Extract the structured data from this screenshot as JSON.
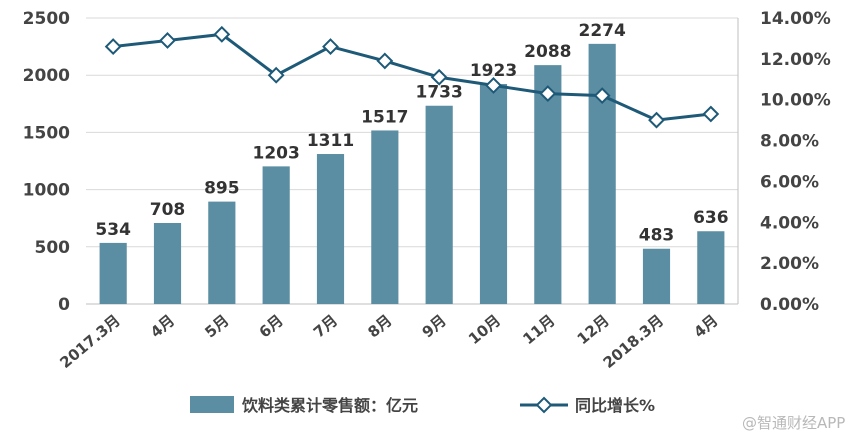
{
  "chart_data": {
    "type": "bar+line",
    "categories": [
      "2017.3月",
      "4月",
      "5月",
      "6月",
      "7月",
      "8月",
      "9月",
      "10月",
      "11月",
      "12月",
      "2018.3月",
      "4月"
    ],
    "series": [
      {
        "name": "饮料类累计零售额：亿元",
        "type": "bar",
        "axis": "left",
        "color": "#5b8da3",
        "values": [
          534,
          708,
          895,
          1203,
          1311,
          1517,
          1733,
          1923,
          2088,
          2274,
          483,
          636
        ]
      },
      {
        "name": "同比增长%",
        "type": "line",
        "axis": "right",
        "color": "#1e5a78",
        "values": [
          12.6,
          12.9,
          13.2,
          11.2,
          12.6,
          11.9,
          11.1,
          10.7,
          10.3,
          10.2,
          9.0,
          9.3
        ]
      }
    ],
    "y_left": {
      "min": 0,
      "max": 2500,
      "ticks": [
        0,
        500,
        1000,
        1500,
        2000,
        2500
      ]
    },
    "y_right": {
      "min": 0,
      "max": 14,
      "ticks": [
        "0.00%",
        "2.00%",
        "4.00%",
        "6.00%",
        "8.00%",
        "10.00%",
        "12.00%",
        "14.00%"
      ]
    },
    "legend_position": "bottom"
  },
  "watermark": "@智通财经APP"
}
